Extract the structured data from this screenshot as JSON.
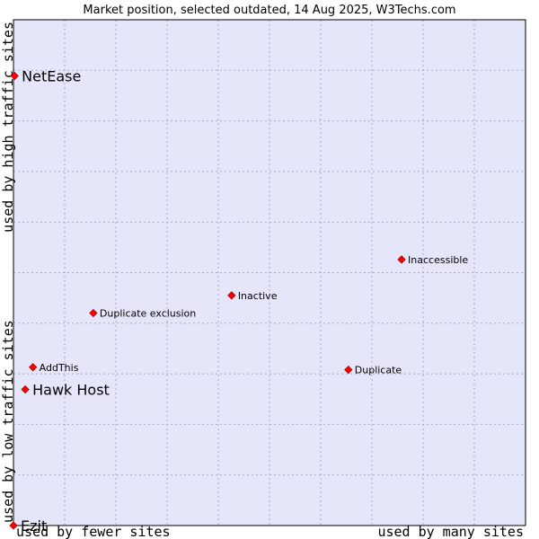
{
  "chart_data": {
    "type": "scatter",
    "title": "Market position, selected outdated, 14 Aug 2025, W3Techs.com",
    "x_axis": {
      "low_label": "used by fewer sites",
      "high_label": "used by many sites",
      "range": [
        0,
        100
      ]
    },
    "y_axis": {
      "low_label": "used by low traffic sites",
      "high_label": "used by high traffic sites",
      "range": [
        0,
        100
      ]
    },
    "grid": true,
    "colors": {
      "plot_bg": "#e6e6fa",
      "point": "#ff0000",
      "point_edge": "#880000",
      "frame": "#000000"
    },
    "points": [
      {
        "label": "NetEase",
        "x": 0.2,
        "y": 88.9,
        "emphasis": true
      },
      {
        "label": "Inaccessible",
        "x": 75.8,
        "y": 52.6,
        "emphasis": false
      },
      {
        "label": "Inactive",
        "x": 42.6,
        "y": 45.5,
        "emphasis": false
      },
      {
        "label": "Duplicate exclusion",
        "x": 15.6,
        "y": 42.0,
        "emphasis": false
      },
      {
        "label": "AddThis",
        "x": 3.8,
        "y": 31.3,
        "emphasis": false
      },
      {
        "label": "Duplicate",
        "x": 65.4,
        "y": 30.8,
        "emphasis": false
      },
      {
        "label": "Hawk Host",
        "x": 2.3,
        "y": 26.9,
        "emphasis": true
      },
      {
        "label": "Ezit",
        "x": 0.0,
        "y": 0.0,
        "emphasis": true
      }
    ]
  }
}
